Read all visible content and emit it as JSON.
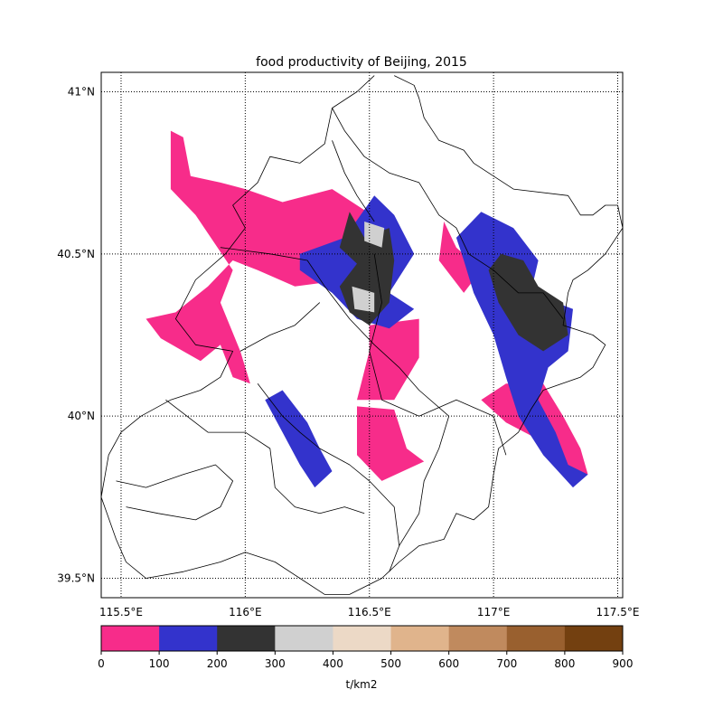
{
  "chart_data": {
    "type": "heatmap",
    "title": "food productivity of Beijing, 2015",
    "map_extent": {
      "lon": [
        115.42,
        117.52
      ],
      "lat": [
        39.44,
        41.06
      ]
    },
    "lat_ticks": [
      {
        "value": 41.0,
        "label": "41°N"
      },
      {
        "value": 40.5,
        "label": "40.5°N"
      },
      {
        "value": 40.0,
        "label": "40°N"
      },
      {
        "value": 39.5,
        "label": "39.5°N"
      }
    ],
    "lon_ticks": [
      {
        "value": 115.5,
        "label": "115.5°E"
      },
      {
        "value": 116.0,
        "label": "116°E"
      },
      {
        "value": 116.5,
        "label": "116.5°E"
      },
      {
        "value": 117.0,
        "label": "117°E"
      },
      {
        "value": 117.5,
        "label": "117.5°E"
      }
    ],
    "grid": "dotted",
    "colorbar": {
      "label": "t/km2",
      "ticks": [
        {
          "value": 0,
          "label": "0"
        },
        {
          "value": 100,
          "label": "100"
        },
        {
          "value": 200,
          "label": "200"
        },
        {
          "value": 300,
          "label": "300"
        },
        {
          "value": 400,
          "label": "400"
        },
        {
          "value": 500,
          "label": "500"
        },
        {
          "value": 600,
          "label": "600"
        },
        {
          "value": 700,
          "label": "700"
        },
        {
          "value": 800,
          "label": "800"
        },
        {
          "value": 900,
          "label": "900"
        }
      ],
      "colors": [
        "#f72c8a",
        "#3333cc",
        "#333333",
        "#d0d0d0",
        "#ecd9c6",
        "#e0b48c",
        "#c08a5e",
        "#99602f",
        "#734010"
      ]
    },
    "regions": [
      {
        "class": 0,
        "lonlat": [
          [
            115.7,
            40.88
          ],
          [
            115.75,
            40.86
          ],
          [
            115.78,
            40.74
          ],
          [
            115.9,
            40.72
          ],
          [
            116.0,
            40.7
          ],
          [
            116.15,
            40.66
          ],
          [
            116.35,
            40.7
          ],
          [
            116.45,
            40.65
          ],
          [
            116.55,
            40.6
          ],
          [
            116.6,
            40.55
          ],
          [
            116.5,
            40.48
          ],
          [
            116.4,
            40.42
          ],
          [
            116.2,
            40.4
          ],
          [
            116.05,
            40.45
          ],
          [
            115.95,
            40.48
          ],
          [
            115.85,
            40.4
          ],
          [
            115.72,
            40.32
          ],
          [
            115.6,
            40.3
          ],
          [
            115.66,
            40.24
          ],
          [
            115.75,
            40.2
          ],
          [
            115.82,
            40.17
          ],
          [
            115.9,
            40.22
          ],
          [
            115.95,
            40.12
          ],
          [
            116.02,
            40.1
          ],
          [
            115.98,
            40.2
          ],
          [
            115.9,
            40.35
          ],
          [
            115.95,
            40.45
          ],
          [
            115.8,
            40.62
          ],
          [
            115.7,
            40.7
          ]
        ]
      },
      {
        "class": 0,
        "lonlat": [
          [
            116.5,
            40.28
          ],
          [
            116.7,
            40.3
          ],
          [
            116.7,
            40.18
          ],
          [
            116.6,
            40.05
          ],
          [
            116.45,
            40.05
          ],
          [
            116.5,
            40.2
          ]
        ]
      },
      {
        "class": 0,
        "lonlat": [
          [
            116.45,
            40.03
          ],
          [
            116.6,
            40.02
          ],
          [
            116.65,
            39.9
          ],
          [
            116.72,
            39.86
          ],
          [
            116.55,
            39.8
          ],
          [
            116.45,
            39.88
          ]
        ]
      },
      {
        "class": 0,
        "lonlat": [
          [
            116.95,
            40.05
          ],
          [
            117.05,
            40.1
          ],
          [
            117.2,
            40.1
          ],
          [
            117.28,
            40.0
          ],
          [
            117.35,
            39.9
          ],
          [
            117.38,
            39.82
          ],
          [
            117.3,
            39.8
          ],
          [
            117.2,
            39.92
          ],
          [
            117.05,
            39.98
          ]
        ]
      },
      {
        "class": 0,
        "lonlat": [
          [
            116.8,
            40.6
          ],
          [
            116.85,
            40.52
          ],
          [
            116.95,
            40.45
          ],
          [
            116.88,
            40.38
          ],
          [
            116.78,
            40.48
          ]
        ]
      },
      {
        "class": 1,
        "lonlat": [
          [
            116.22,
            40.5
          ],
          [
            116.4,
            40.55
          ],
          [
            116.52,
            40.68
          ],
          [
            116.6,
            40.62
          ],
          [
            116.68,
            40.5
          ],
          [
            116.58,
            40.38
          ],
          [
            116.68,
            40.33
          ],
          [
            116.58,
            40.27
          ],
          [
            116.45,
            40.3
          ],
          [
            116.35,
            40.38
          ],
          [
            116.22,
            40.45
          ]
        ]
      },
      {
        "class": 1,
        "lonlat": [
          [
            116.85,
            40.55
          ],
          [
            116.95,
            40.63
          ],
          [
            117.08,
            40.58
          ],
          [
            117.18,
            40.48
          ],
          [
            117.15,
            40.38
          ],
          [
            117.32,
            40.33
          ],
          [
            117.3,
            40.2
          ],
          [
            117.22,
            40.15
          ],
          [
            117.18,
            40.05
          ],
          [
            117.25,
            39.95
          ],
          [
            117.3,
            39.85
          ],
          [
            117.38,
            39.82
          ],
          [
            117.32,
            39.78
          ],
          [
            117.2,
            39.88
          ],
          [
            117.1,
            40.0
          ],
          [
            117.05,
            40.12
          ],
          [
            117.0,
            40.25
          ],
          [
            116.92,
            40.38
          ],
          [
            116.88,
            40.48
          ]
        ]
      },
      {
        "class": 1,
        "lonlat": [
          [
            116.08,
            40.05
          ],
          [
            116.15,
            40.08
          ],
          [
            116.25,
            39.98
          ],
          [
            116.3,
            39.9
          ],
          [
            116.35,
            39.83
          ],
          [
            116.28,
            39.78
          ],
          [
            116.22,
            39.85
          ],
          [
            116.15,
            39.95
          ]
        ]
      },
      {
        "class": 2,
        "lonlat": [
          [
            116.42,
            40.63
          ],
          [
            116.48,
            40.55
          ],
          [
            116.58,
            40.58
          ],
          [
            116.6,
            40.48
          ],
          [
            116.58,
            40.35
          ],
          [
            116.5,
            40.28
          ],
          [
            116.42,
            40.32
          ],
          [
            116.38,
            40.4
          ],
          [
            116.45,
            40.47
          ],
          [
            116.38,
            40.52
          ]
        ]
      },
      {
        "class": 2,
        "lonlat": [
          [
            117.03,
            40.5
          ],
          [
            117.12,
            40.48
          ],
          [
            117.18,
            40.4
          ],
          [
            117.28,
            40.35
          ],
          [
            117.3,
            40.25
          ],
          [
            117.2,
            40.2
          ],
          [
            117.1,
            40.25
          ],
          [
            117.02,
            40.35
          ],
          [
            116.98,
            40.45
          ]
        ]
      },
      {
        "class": 3,
        "lonlat": [
          [
            116.48,
            40.6
          ],
          [
            116.56,
            40.58
          ],
          [
            116.55,
            40.52
          ],
          [
            116.48,
            40.54
          ]
        ]
      },
      {
        "class": 3,
        "lonlat": [
          [
            116.43,
            40.4
          ],
          [
            116.52,
            40.38
          ],
          [
            116.52,
            40.32
          ],
          [
            116.44,
            40.33
          ]
        ]
      }
    ],
    "boundaries": [
      {
        "name": "outer",
        "lonlat": [
          [
            116.6,
            41.05
          ],
          [
            116.68,
            41.02
          ],
          [
            116.7,
            40.98
          ],
          [
            116.72,
            40.92
          ],
          [
            116.78,
            40.85
          ],
          [
            116.88,
            40.82
          ],
          [
            116.92,
            40.78
          ],
          [
            117.08,
            40.7
          ],
          [
            117.3,
            40.68
          ],
          [
            117.35,
            40.62
          ],
          [
            117.4,
            40.62
          ],
          [
            117.45,
            40.65
          ],
          [
            117.5,
            40.65
          ],
          [
            117.52,
            40.58
          ],
          [
            117.45,
            40.5
          ],
          [
            117.38,
            40.45
          ],
          [
            117.32,
            40.42
          ],
          [
            117.3,
            40.38
          ],
          [
            117.28,
            40.28
          ],
          [
            117.4,
            40.25
          ],
          [
            117.45,
            40.22
          ],
          [
            117.4,
            40.15
          ],
          [
            117.35,
            40.12
          ],
          [
            117.2,
            40.08
          ],
          [
            117.15,
            40.02
          ],
          [
            117.1,
            39.95
          ],
          [
            117.02,
            39.9
          ],
          [
            117.0,
            39.82
          ],
          [
            116.98,
            39.72
          ],
          [
            116.92,
            39.68
          ],
          [
            116.85,
            39.7
          ],
          [
            116.8,
            39.62
          ],
          [
            116.7,
            39.6
          ],
          [
            116.62,
            39.55
          ],
          [
            116.55,
            39.5
          ],
          [
            116.42,
            39.45
          ],
          [
            116.32,
            39.45
          ],
          [
            116.22,
            39.5
          ],
          [
            116.12,
            39.55
          ],
          [
            116.0,
            39.58
          ],
          [
            115.9,
            39.55
          ],
          [
            115.75,
            39.52
          ],
          [
            115.6,
            39.5
          ],
          [
            115.52,
            39.55
          ],
          [
            115.48,
            39.62
          ],
          [
            115.42,
            39.75
          ],
          [
            115.45,
            39.88
          ],
          [
            115.5,
            39.95
          ],
          [
            115.58,
            40.0
          ],
          [
            115.7,
            40.05
          ],
          [
            115.82,
            40.08
          ],
          [
            115.9,
            40.12
          ],
          [
            115.95,
            40.2
          ],
          [
            115.8,
            40.22
          ],
          [
            115.72,
            40.3
          ],
          [
            115.8,
            40.42
          ],
          [
            115.92,
            40.5
          ],
          [
            116.0,
            40.58
          ],
          [
            115.95,
            40.65
          ],
          [
            116.05,
            40.72
          ],
          [
            116.1,
            40.8
          ],
          [
            116.22,
            40.78
          ],
          [
            116.32,
            40.84
          ],
          [
            116.35,
            40.95
          ],
          [
            116.45,
            41.0
          ],
          [
            116.52,
            41.05
          ]
        ]
      },
      {
        "name": "inner-1",
        "lonlat": [
          [
            116.35,
            40.95
          ],
          [
            116.4,
            40.88
          ],
          [
            116.48,
            40.8
          ],
          [
            116.58,
            40.75
          ],
          [
            116.7,
            40.72
          ],
          [
            116.78,
            40.62
          ],
          [
            116.85,
            40.58
          ],
          [
            116.9,
            40.5
          ],
          [
            117.0,
            40.45
          ],
          [
            117.1,
            40.38
          ],
          [
            117.2,
            40.38
          ],
          [
            117.28,
            40.3
          ]
        ]
      },
      {
        "name": "inner-2",
        "lonlat": [
          [
            115.9,
            40.52
          ],
          [
            116.1,
            40.5
          ],
          [
            116.25,
            40.48
          ],
          [
            116.32,
            40.4
          ],
          [
            116.42,
            40.3
          ],
          [
            116.52,
            40.22
          ],
          [
            116.62,
            40.15
          ],
          [
            116.7,
            40.08
          ],
          [
            116.82,
            40.0
          ]
        ]
      },
      {
        "name": "inner-3",
        "lonlat": [
          [
            116.52,
            40.5
          ],
          [
            116.55,
            40.35
          ],
          [
            116.5,
            40.2
          ],
          [
            116.55,
            40.05
          ],
          [
            116.7,
            40.0
          ],
          [
            116.85,
            40.05
          ],
          [
            117.0,
            40.0
          ],
          [
            117.05,
            39.88
          ]
        ]
      },
      {
        "name": "inner-4",
        "lonlat": [
          [
            116.05,
            40.1
          ],
          [
            116.15,
            40.0
          ],
          [
            116.22,
            39.95
          ],
          [
            116.3,
            39.9
          ],
          [
            116.42,
            39.85
          ],
          [
            116.5,
            39.8
          ],
          [
            116.6,
            39.72
          ],
          [
            116.62,
            39.6
          ],
          [
            116.58,
            39.52
          ]
        ]
      },
      {
        "name": "inner-5",
        "lonlat": [
          [
            115.68,
            40.05
          ],
          [
            115.85,
            39.95
          ],
          [
            116.0,
            39.95
          ],
          [
            116.1,
            39.9
          ],
          [
            116.12,
            39.78
          ],
          [
            116.2,
            39.72
          ],
          [
            116.3,
            39.7
          ],
          [
            116.4,
            39.72
          ],
          [
            116.48,
            39.7
          ]
        ]
      },
      {
        "name": "inner-6",
        "lonlat": [
          [
            115.48,
            39.8
          ],
          [
            115.6,
            39.78
          ],
          [
            115.75,
            39.82
          ],
          [
            115.88,
            39.85
          ],
          [
            115.95,
            39.8
          ],
          [
            115.9,
            39.72
          ],
          [
            115.8,
            39.68
          ],
          [
            115.65,
            39.7
          ],
          [
            115.52,
            39.72
          ]
        ]
      },
      {
        "name": "inner-7",
        "lonlat": [
          [
            116.3,
            40.35
          ],
          [
            116.2,
            40.28
          ],
          [
            116.1,
            40.25
          ],
          [
            115.98,
            40.2
          ]
        ]
      },
      {
        "name": "inner-8",
        "lonlat": [
          [
            116.82,
            40.0
          ],
          [
            116.78,
            39.9
          ],
          [
            116.72,
            39.8
          ],
          [
            116.7,
            39.7
          ],
          [
            116.62,
            39.6
          ]
        ]
      },
      {
        "name": "inner-9",
        "lonlat": [
          [
            116.35,
            40.85
          ],
          [
            116.4,
            40.75
          ],
          [
            116.45,
            40.68
          ],
          [
            116.52,
            40.6
          ]
        ]
      }
    ]
  }
}
